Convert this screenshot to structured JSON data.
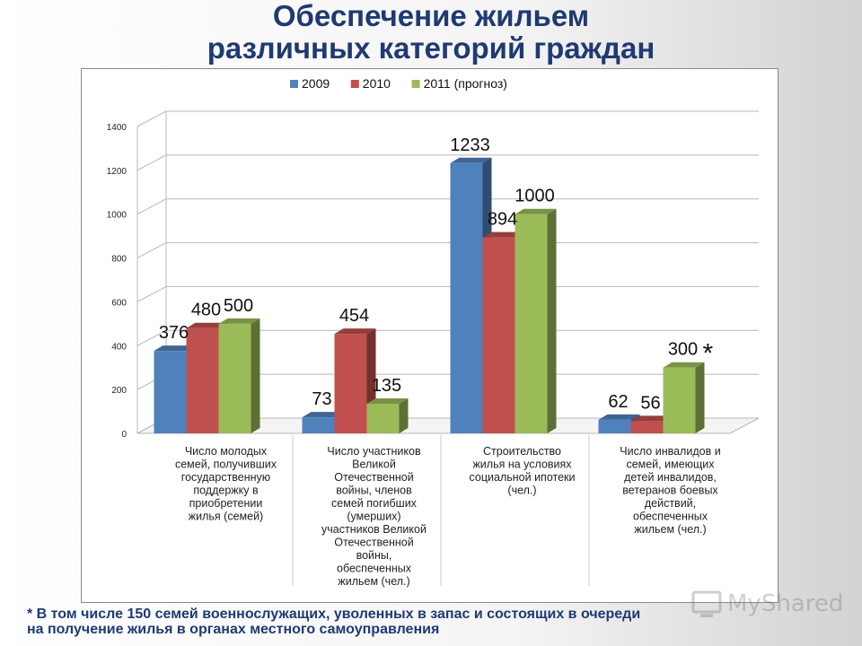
{
  "title": {
    "line1": "Обеспечение жильем",
    "line2": "различных категорий граждан"
  },
  "chart_data": {
    "type": "bar",
    "legend_position": "top",
    "grid": true,
    "ylim": [
      0,
      1400
    ],
    "yticks": [
      0,
      200,
      400,
      600,
      800,
      1000,
      1200,
      1400
    ],
    "categories": [
      [
        "Число молодых",
        "семей, получивших",
        "государственную",
        "поддержку в",
        "приобретении",
        "жилья (семей)"
      ],
      [
        "Число участников",
        "Великой",
        "Отечественной",
        "войны, членов",
        "семей погибших",
        "(умерших)",
        "участников Великой",
        "Отечественной",
        "войны,",
        "обеспеченных",
        "жильем (чел.)"
      ],
      [
        "Строительство",
        "жилья на условиях",
        "социальной ипотеки",
        "(чел.)"
      ],
      [
        "Число инвалидов и",
        "семей, имеющих",
        "детей инвалидов,",
        "ветеранов боевых",
        "действий,",
        "обеспеченных",
        "жильем (чел.)"
      ]
    ],
    "series": [
      {
        "name": "2009",
        "color": "#4f81bd",
        "values": [
          376,
          73,
          1233,
          62
        ]
      },
      {
        "name": "2010",
        "color": "#c0504d",
        "values": [
          480,
          454,
          894,
          56
        ]
      },
      {
        "name": "2011 (прогноз)",
        "color": "#9bbb59",
        "values": [
          500,
          135,
          1000,
          300
        ]
      }
    ],
    "annotations": [
      {
        "text": "*",
        "series": 2,
        "category": 3
      }
    ]
  },
  "footnote": {
    "line1": "* В том числе 150  семей военнослужащих, уволенных в запас и состоящих в очереди",
    "line2": "на получение жилья в органах местного самоуправления"
  },
  "watermark": {
    "text": "MyShared",
    "icon": "computer-icon"
  }
}
